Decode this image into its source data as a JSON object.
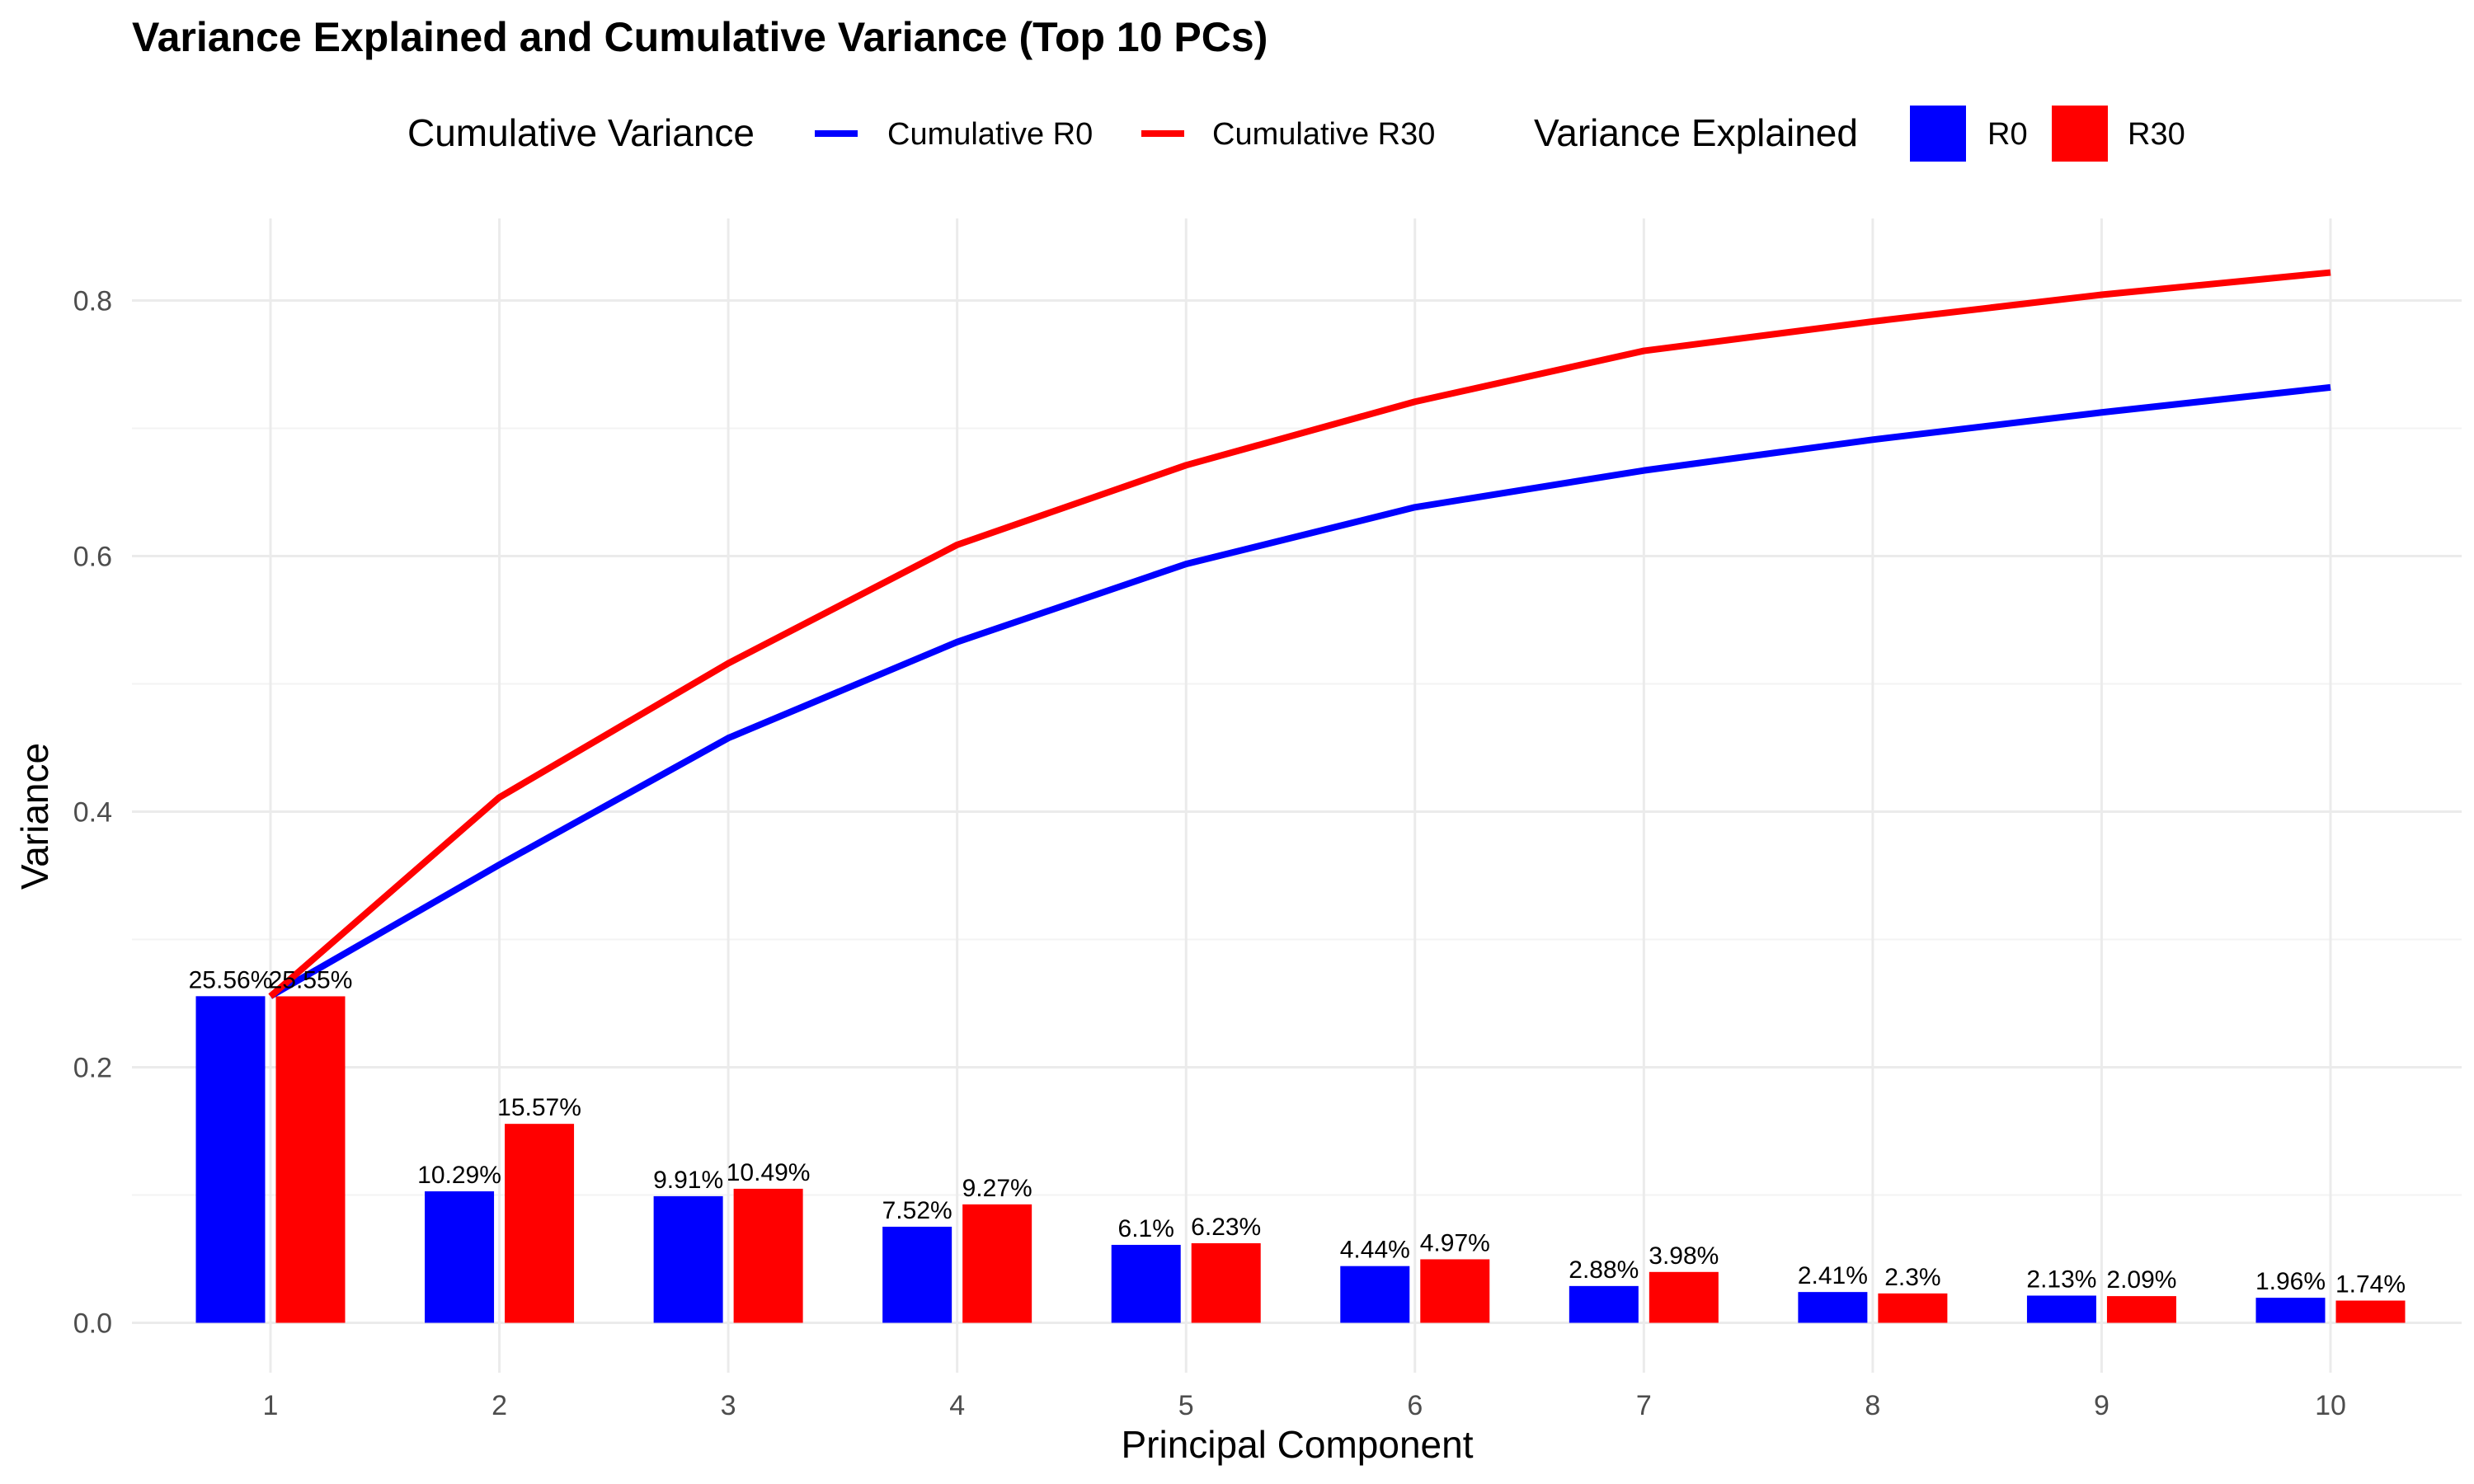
{
  "chart_data": {
    "type": "bar",
    "title": "Variance Explained and Cumulative Variance (Top 10 PCs)",
    "xlabel": "Principal Component",
    "ylabel": "Variance",
    "categories": [
      "1",
      "2",
      "3",
      "4",
      "5",
      "6",
      "7",
      "8",
      "9",
      "10"
    ],
    "ylim": [
      -0.045,
      0.865
    ],
    "y_ticks": [
      "0.0",
      "0.2",
      "0.4",
      "0.6",
      "0.8"
    ],
    "grid": true,
    "legend_position": "top",
    "legend": {
      "line_title": "Cumulative Variance",
      "bar_title": "Variance Explained"
    },
    "bar_series": [
      {
        "name": "R0",
        "color": "#0000ff",
        "values": [
          0.2556,
          0.1029,
          0.0991,
          0.0752,
          0.061,
          0.0444,
          0.0288,
          0.0241,
          0.0213,
          0.0196
        ],
        "labels": [
          "25.56%",
          "10.29%",
          "9.91%",
          "7.52%",
          "6.1%",
          "4.44%",
          "2.88%",
          "2.41%",
          "2.13%",
          "1.96%"
        ]
      },
      {
        "name": "R30",
        "color": "#ff0000",
        "values": [
          0.2555,
          0.1557,
          0.1049,
          0.0927,
          0.0623,
          0.0497,
          0.0398,
          0.023,
          0.0209,
          0.0174
        ],
        "labels": [
          "25.55%",
          "15.57%",
          "10.49%",
          "9.27%",
          "6.23%",
          "4.97%",
          "3.98%",
          "2.3%",
          "2.09%",
          "1.74%"
        ]
      }
    ],
    "line_series": [
      {
        "name": "Cumulative R0",
        "color": "#0000ff",
        "values": [
          0.2556,
          0.3585,
          0.4576,
          0.5328,
          0.5938,
          0.6382,
          0.667,
          0.6911,
          0.7124,
          0.732
        ]
      },
      {
        "name": "Cumulative R30",
        "color": "#ff0000",
        "values": [
          0.2555,
          0.4112,
          0.5161,
          0.6088,
          0.6711,
          0.7208,
          0.7606,
          0.7836,
          0.8045,
          0.8219
        ]
      }
    ]
  }
}
